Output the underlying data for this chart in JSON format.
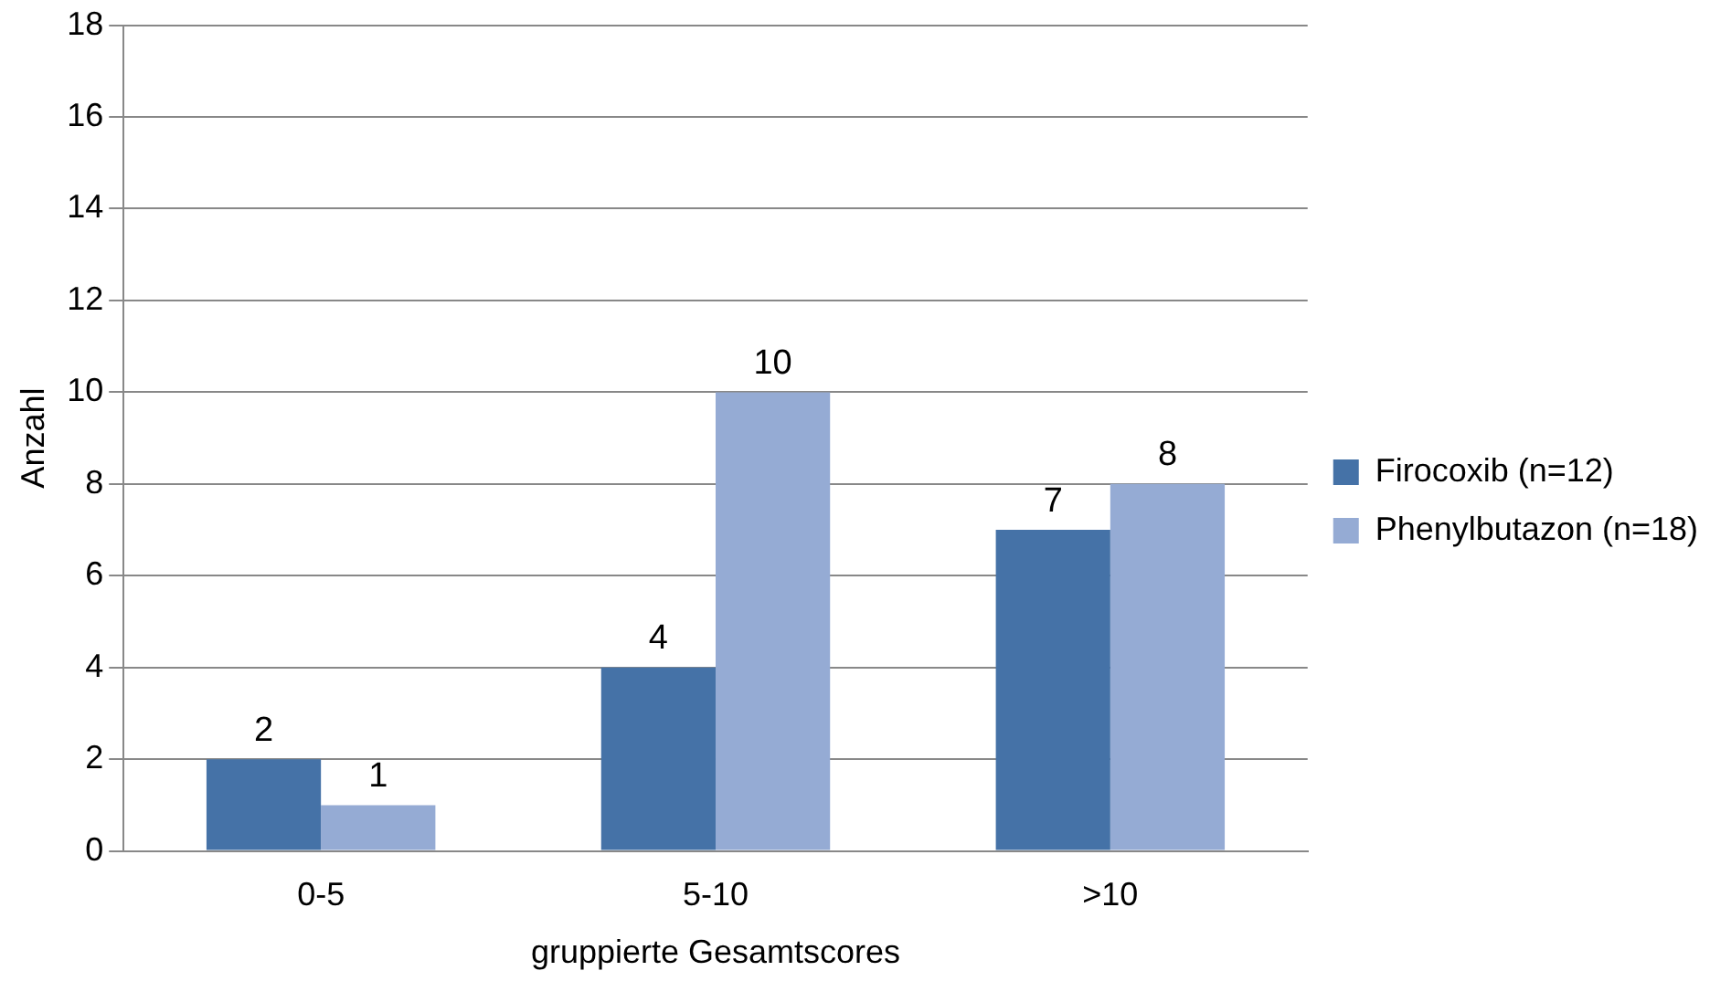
{
  "chart_data": {
    "type": "bar",
    "xlabel": "gruppierte Gesamtscores",
    "ylabel": "Anzahl",
    "categories": [
      "0-5",
      "5-10",
      ">10"
    ],
    "series": [
      {
        "name": "Firocoxib (n=12)",
        "color": "#4572a7",
        "values": [
          2,
          4,
          7
        ]
      },
      {
        "name": "Phenylbutazon (n=18)",
        "color": "#95abd4",
        "values": [
          1,
          10,
          8
        ]
      }
    ],
    "ylim": [
      0,
      18
    ],
    "yticks": [
      0,
      2,
      4,
      6,
      8,
      10,
      12,
      14,
      16,
      18
    ],
    "grid": "y",
    "legend": "right",
    "data_labels": true
  }
}
